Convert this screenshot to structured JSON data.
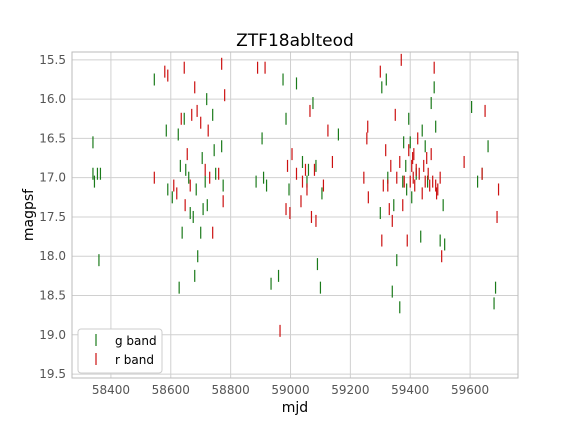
{
  "chart_data": {
    "type": "scatter",
    "title": "ZTF18ablteod",
    "xlabel": "mjd",
    "ylabel": "magpsf",
    "xlim": [
      58270,
      59760
    ],
    "ylim": [
      19.55,
      15.4
    ],
    "y_inverted": true,
    "grid": true,
    "legend_position": "lower-left",
    "x_ticks": [
      "58400",
      "58600",
      "58800",
      "59000",
      "59200",
      "59400",
      "59600"
    ],
    "y_ticks": [
      "15.5",
      "16.0",
      "16.5",
      "17.0",
      "17.5",
      "18.0",
      "18.5",
      "19.0",
      "19.5"
    ],
    "marker": "vertical-line",
    "series": [
      {
        "name": "g band",
        "color": "#1a7a1a",
        "points": [
          [
            58340,
            16.55
          ],
          [
            58340,
            16.95
          ],
          [
            58345,
            17.05
          ],
          [
            58355,
            16.95
          ],
          [
            58360,
            18.05
          ],
          [
            58365,
            16.95
          ],
          [
            58545,
            15.75
          ],
          [
            58585,
            16.4
          ],
          [
            58590,
            17.15
          ],
          [
            58605,
            17.25
          ],
          [
            58625,
            16.45
          ],
          [
            58628,
            18.4
          ],
          [
            58632,
            16.85
          ],
          [
            58638,
            17.7
          ],
          [
            58645,
            16.25
          ],
          [
            58650,
            16.9
          ],
          [
            58660,
            17.0
          ],
          [
            58665,
            17.45
          ],
          [
            58675,
            17.5
          ],
          [
            58680,
            18.25
          ],
          [
            58685,
            17.15
          ],
          [
            58690,
            18.0
          ],
          [
            58700,
            17.7
          ],
          [
            58705,
            16.75
          ],
          [
            58708,
            17.4
          ],
          [
            58715,
            17.05
          ],
          [
            58720,
            16.0
          ],
          [
            58722,
            17.35
          ],
          [
            58740,
            16.2
          ],
          [
            58745,
            16.65
          ],
          [
            58750,
            16.95
          ],
          [
            58770,
            16.6
          ],
          [
            58775,
            17.1
          ],
          [
            58885,
            17.05
          ],
          [
            58905,
            16.5
          ],
          [
            58910,
            17.0
          ],
          [
            58920,
            17.1
          ],
          [
            58935,
            18.35
          ],
          [
            58960,
            18.25
          ],
          [
            58975,
            15.75
          ],
          [
            58985,
            16.25
          ],
          [
            58995,
            17.15
          ],
          [
            59020,
            15.8
          ],
          [
            59040,
            16.8
          ],
          [
            59055,
            17.05
          ],
          [
            59060,
            16.9
          ],
          [
            59075,
            16.05
          ],
          [
            59085,
            16.85
          ],
          [
            59090,
            18.1
          ],
          [
            59100,
            18.4
          ],
          [
            59105,
            17.2
          ],
          [
            59160,
            16.45
          ],
          [
            59300,
            17.45
          ],
          [
            59305,
            15.85
          ],
          [
            59320,
            15.75
          ],
          [
            59325,
            17.0
          ],
          [
            59340,
            18.45
          ],
          [
            59345,
            17.35
          ],
          [
            59355,
            18.05
          ],
          [
            59365,
            18.65
          ],
          [
            59375,
            17.05
          ],
          [
            59378,
            16.55
          ],
          [
            59385,
            16.85
          ],
          [
            59388,
            17.15
          ],
          [
            59395,
            16.25
          ],
          [
            59400,
            16.55
          ],
          [
            59405,
            17.25
          ],
          [
            59420,
            16.95
          ],
          [
            59435,
            17.75
          ],
          [
            59440,
            16.4
          ],
          [
            59450,
            16.6
          ],
          [
            59458,
            17.05
          ],
          [
            59470,
            16.05
          ],
          [
            59480,
            15.85
          ],
          [
            59485,
            16.35
          ],
          [
            59500,
            17.8
          ],
          [
            59510,
            17.35
          ],
          [
            59515,
            17.85
          ],
          [
            59605,
            16.1
          ],
          [
            59625,
            17.05
          ],
          [
            59640,
            16.95
          ],
          [
            59660,
            16.6
          ],
          [
            59680,
            18.6
          ],
          [
            59685,
            18.4
          ]
        ]
      },
      {
        "name": "r band",
        "color": "#cc1111",
        "points": [
          [
            58545,
            17.0
          ],
          [
            58580,
            15.65
          ],
          [
            58590,
            15.7
          ],
          [
            58610,
            17.1
          ],
          [
            58620,
            17.2
          ],
          [
            58635,
            16.25
          ],
          [
            58645,
            15.6
          ],
          [
            58648,
            17.35
          ],
          [
            58655,
            16.7
          ],
          [
            58665,
            17.1
          ],
          [
            58670,
            16.2
          ],
          [
            58680,
            15.85
          ],
          [
            58688,
            16.15
          ],
          [
            58700,
            16.3
          ],
          [
            58715,
            16.9
          ],
          [
            58725,
            16.4
          ],
          [
            58730,
            17.0
          ],
          [
            58740,
            17.7
          ],
          [
            58760,
            16.95
          ],
          [
            58770,
            15.55
          ],
          [
            58775,
            17.3
          ],
          [
            58780,
            15.95
          ],
          [
            58890,
            15.6
          ],
          [
            58915,
            15.6
          ],
          [
            58965,
            18.95
          ],
          [
            58985,
            17.4
          ],
          [
            58990,
            16.85
          ],
          [
            58998,
            17.45
          ],
          [
            59005,
            16.7
          ],
          [
            59020,
            16.95
          ],
          [
            59035,
            17.3
          ],
          [
            59040,
            17.05
          ],
          [
            59050,
            16.9
          ],
          [
            59055,
            17.15
          ],
          [
            59065,
            16.15
          ],
          [
            59070,
            17.5
          ],
          [
            59080,
            16.9
          ],
          [
            59085,
            17.55
          ],
          [
            59110,
            17.1
          ],
          [
            59125,
            16.4
          ],
          [
            59140,
            16.8
          ],
          [
            59245,
            17.0
          ],
          [
            59255,
            16.5
          ],
          [
            59258,
            16.35
          ],
          [
            59260,
            17.25
          ],
          [
            59300,
            15.65
          ],
          [
            59305,
            17.8
          ],
          [
            59310,
            17.1
          ],
          [
            59318,
            16.65
          ],
          [
            59325,
            17.1
          ],
          [
            59330,
            17.4
          ],
          [
            59335,
            16.85
          ],
          [
            59340,
            17.55
          ],
          [
            59350,
            16.2
          ],
          [
            59355,
            17.0
          ],
          [
            59365,
            16.8
          ],
          [
            59370,
            15.5
          ],
          [
            59375,
            17.35
          ],
          [
            59380,
            17.05
          ],
          [
            59390,
            17.8
          ],
          [
            59395,
            16.65
          ],
          [
            59400,
            17.05
          ],
          [
            59405,
            16.85
          ],
          [
            59408,
            16.75
          ],
          [
            59410,
            17.0
          ],
          [
            59412,
            16.7
          ],
          [
            59415,
            17.1
          ],
          [
            59420,
            16.9
          ],
          [
            59425,
            16.5
          ],
          [
            59430,
            16.95
          ],
          [
            59440,
            17.2
          ],
          [
            59445,
            16.85
          ],
          [
            59450,
            17.05
          ],
          [
            59455,
            16.75
          ],
          [
            59460,
            16.95
          ],
          [
            59465,
            17.1
          ],
          [
            59470,
            16.7
          ],
          [
            59475,
            17.05
          ],
          [
            59480,
            15.6
          ],
          [
            59485,
            17.1
          ],
          [
            59488,
            17.2
          ],
          [
            59492,
            17.15
          ],
          [
            59500,
            17.0
          ],
          [
            59505,
            18.0
          ],
          [
            59580,
            16.8
          ],
          [
            59640,
            16.95
          ],
          [
            59650,
            16.15
          ],
          [
            59690,
            17.5
          ],
          [
            59695,
            17.15
          ]
        ]
      }
    ]
  }
}
